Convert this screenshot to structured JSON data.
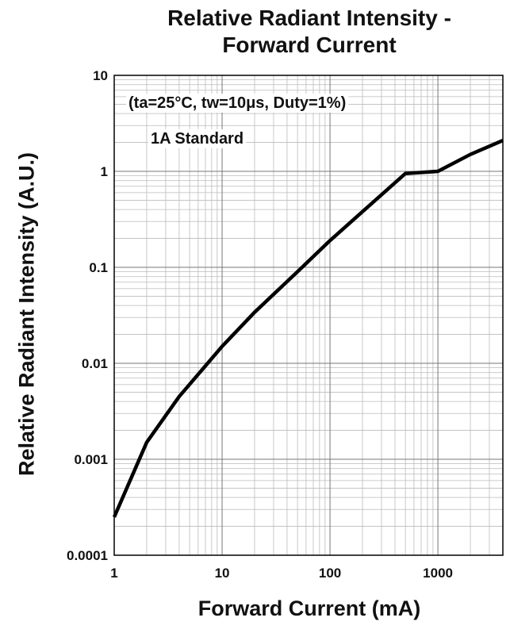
{
  "chart_data": {
    "type": "line",
    "title": "Relative Radiant Intensity -",
    "title_line2": "Forward Current",
    "xlabel": "Forward Current (mA)",
    "ylabel": "Relative Radiant Intensity (A.U.)",
    "x_scale": "log",
    "y_scale": "log",
    "xlim": [
      1,
      4000
    ],
    "ylim": [
      0.0001,
      10
    ],
    "x_ticks": [
      "1",
      "10",
      "100",
      "1000"
    ],
    "y_ticks": [
      "0.0001",
      "0.001",
      "0.01",
      "0.1",
      "1",
      "10"
    ],
    "grid": true,
    "annotations": [
      "(ta=25°C, tw=10μs, Duty=1%)",
      "1A Standard"
    ],
    "series": [
      {
        "x": [
          1,
          2,
          4,
          10,
          20,
          50,
          100,
          200,
          500,
          1000,
          2000,
          4000
        ],
        "values": [
          0.00025,
          0.0015,
          0.0045,
          0.015,
          0.034,
          0.09,
          0.19,
          0.38,
          0.95,
          1.0,
          1.5,
          2.1
        ]
      }
    ]
  }
}
